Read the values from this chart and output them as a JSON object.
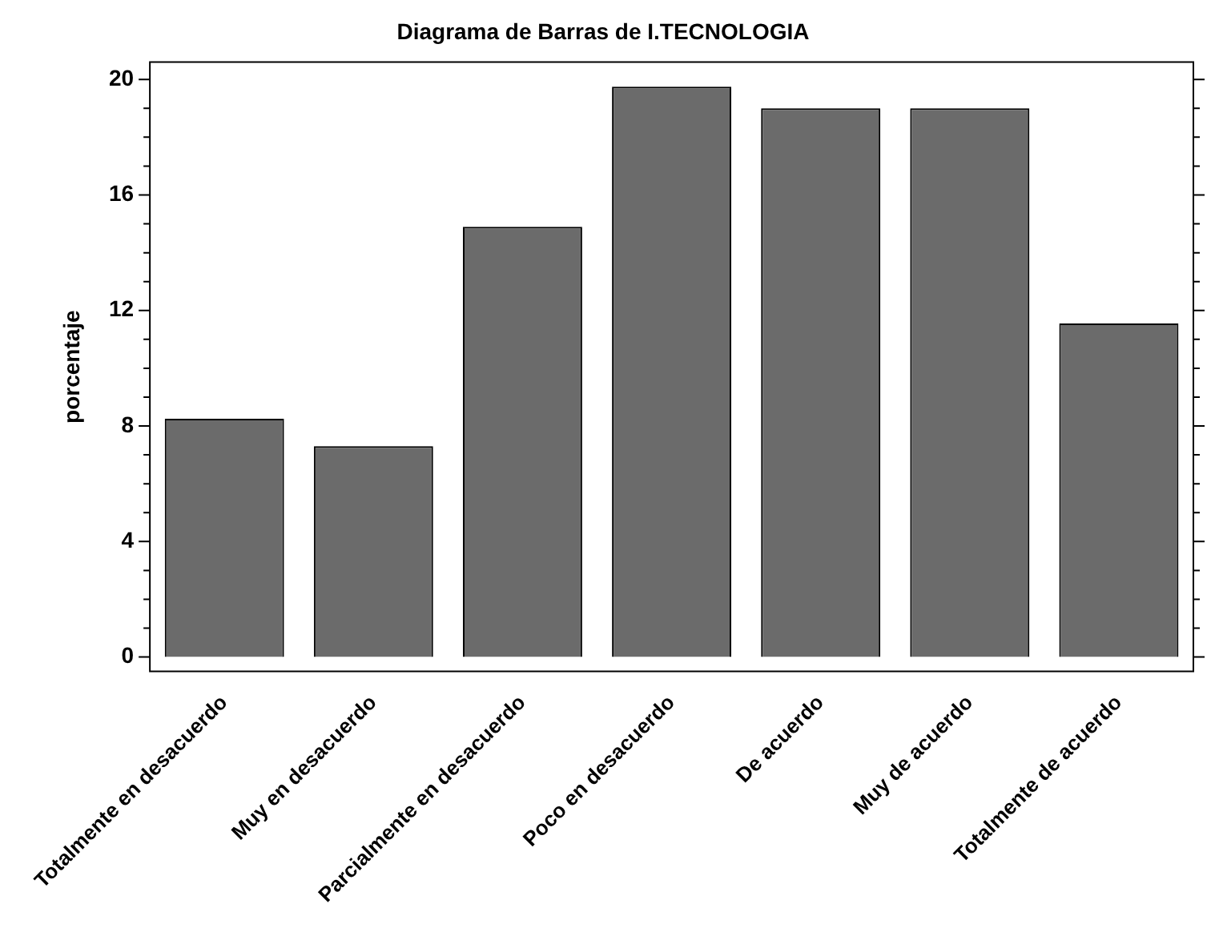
{
  "chart_data": {
    "type": "bar",
    "title": "Diagrama de Barras de I.TECNOLOGIA",
    "ylabel": "porcentaje",
    "categories": [
      "Totalmente en desacuerdo",
      "Muy en desacuerdo",
      "Parcialmente en desacuerdo",
      "Poco en desacuerdo",
      "De acuerdo",
      "Muy de acuerdo",
      "Totalmente de acuerdo"
    ],
    "values": [
      8.25,
      7.3,
      14.9,
      19.75,
      19.0,
      19.0,
      11.55
    ],
    "color": "#6b6b6b",
    "ylim": [
      -0.5,
      20.6
    ],
    "yticks": [
      0,
      {
        "value": 1,
        "label": null
      },
      {
        "value": 2,
        "label": null
      },
      {
        "value": 3,
        "label": null
      },
      4,
      {
        "value": 5,
        "label": null
      },
      {
        "value": 6,
        "label": null
      },
      {
        "value": 7,
        "label": null
      },
      8,
      {
        "value": 9,
        "label": null
      },
      {
        "value": 10,
        "label": null
      },
      {
        "value": 11,
        "label": null
      },
      12,
      {
        "value": 13,
        "label": null
      },
      {
        "value": 14,
        "label": null
      },
      {
        "value": 15,
        "label": null
      },
      16,
      {
        "value": 17,
        "label": null
      },
      {
        "value": 18,
        "label": null
      },
      {
        "value": 19,
        "label": null
      },
      20
    ],
    "grid": false,
    "legend": false
  }
}
